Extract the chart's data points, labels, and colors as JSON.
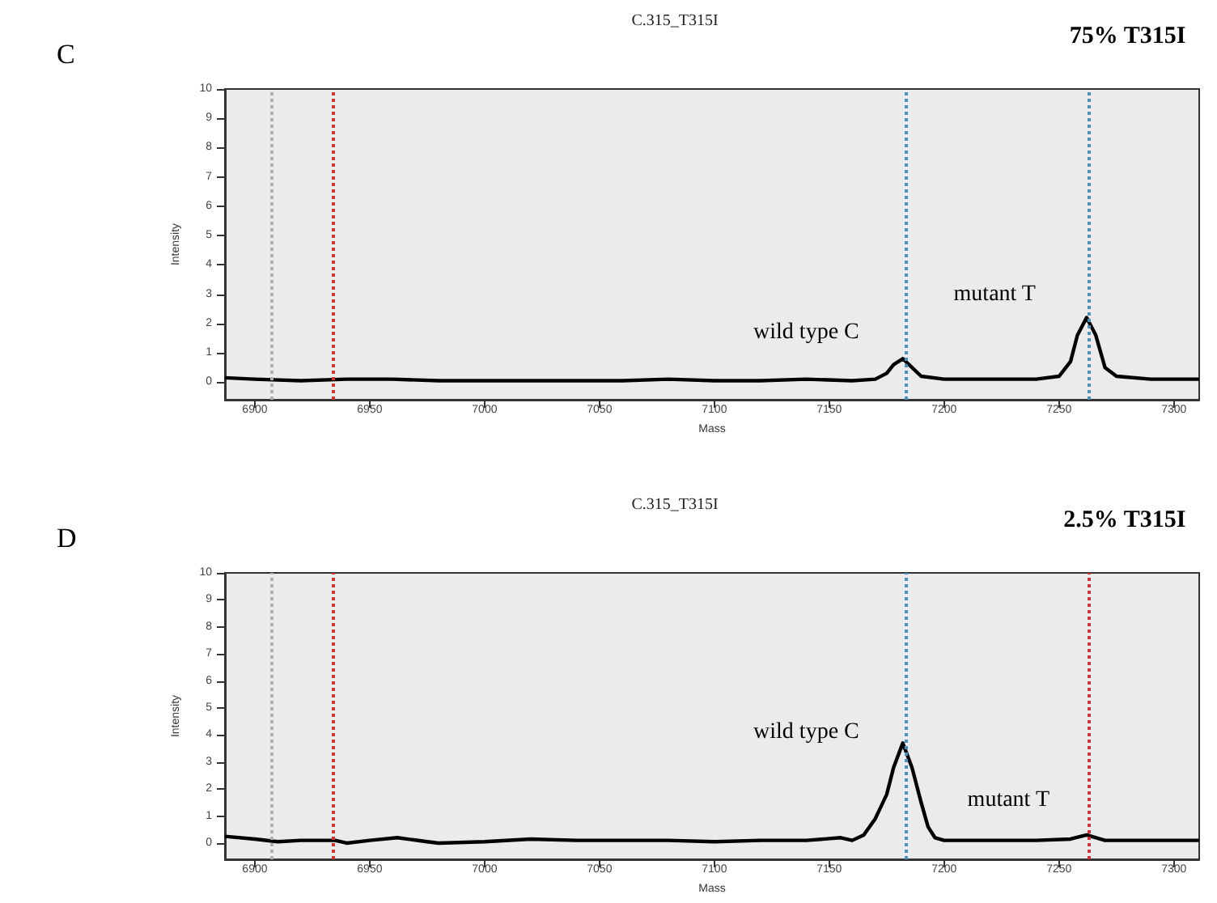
{
  "chart_data": [
    {
      "type": "line",
      "title": "75% T315I",
      "subtitle": "C.315_T315I",
      "xlabel": "Mass",
      "ylabel": "Intensity",
      "annotations": [
        "C",
        "wild type C",
        "mutant T"
      ],
      "series": [
        {
          "color": "#000000",
          "x": [
            6887,
            6900,
            6920,
            6940,
            6960,
            6980,
            7000,
            7020,
            7040,
            7060,
            7080,
            7100,
            7120,
            7140,
            7160,
            7170,
            7175,
            7178,
            7182,
            7186,
            7190,
            7200,
            7220,
            7240,
            7250,
            7255,
            7258,
            7262,
            7266,
            7270,
            7275,
            7290,
            7311
          ],
          "values": [
            0.15,
            0.1,
            0.05,
            0.1,
            0.1,
            0.05,
            0.05,
            0.05,
            0.05,
            0.05,
            0.1,
            0.05,
            0.05,
            0.1,
            0.05,
            0.1,
            0.3,
            0.6,
            0.8,
            0.5,
            0.2,
            0.1,
            0.1,
            0.1,
            0.2,
            0.7,
            1.6,
            2.2,
            1.6,
            0.5,
            0.2,
            0.1,
            0.1
          ]
        }
      ],
      "xlim": [
        6887,
        7311
      ],
      "xticks": [
        6900,
        6950,
        7000,
        7050,
        7100,
        7150,
        7200,
        7250,
        7300
      ],
      "ylim": [
        -0.6,
        10
      ],
      "yticks": [
        0,
        1,
        2,
        3,
        4,
        5,
        6,
        7,
        8,
        9,
        10
      ],
      "ref_lines": [
        {
          "axis": "x",
          "value": 6907,
          "label": null,
          "color": "#b0b0b0",
          "line_style": "dotted"
        },
        {
          "axis": "x",
          "value": 6934,
          "label": null,
          "color": "#cc3333",
          "line_style": "dotted"
        },
        {
          "axis": "x",
          "value": 7183,
          "label": null,
          "color": "#4a8fc0",
          "line_style": "dotted"
        },
        {
          "axis": "x",
          "value": 7263,
          "label": null,
          "color": "#4a8fc0",
          "line_style": "dotted"
        }
      ],
      "grid": false,
      "marker": "none",
      "line_style": "solid"
    },
    {
      "type": "line",
      "title": "2.5% T315I",
      "subtitle": "C.315_T315I",
      "xlabel": "Mass",
      "ylabel": "Intensity",
      "annotations": [
        "D",
        "wild type C",
        "mutant T"
      ],
      "series": [
        {
          "color": "#000000",
          "x": [
            6887,
            6900,
            6910,
            6920,
            6935,
            6940,
            6950,
            6962,
            6975,
            6980,
            7000,
            7020,
            7040,
            7060,
            7080,
            7100,
            7120,
            7140,
            7155,
            7160,
            7165,
            7170,
            7175,
            7178,
            7182,
            7186,
            7190,
            7193,
            7196,
            7200,
            7220,
            7240,
            7255,
            7262,
            7270,
            7290,
            7311
          ],
          "values": [
            0.25,
            0.15,
            0.05,
            0.1,
            0.1,
            0,
            0.1,
            0.2,
            0.05,
            0,
            0.05,
            0.15,
            0.1,
            0.1,
            0.1,
            0.05,
            0.1,
            0.1,
            0.2,
            0.1,
            0.3,
            0.9,
            1.8,
            2.8,
            3.7,
            2.8,
            1.5,
            0.6,
            0.2,
            0.1,
            0.1,
            0.1,
            0.15,
            0.3,
            0.1,
            0.1,
            0.1
          ]
        }
      ],
      "xlim": [
        6887,
        7311
      ],
      "xticks": [
        6900,
        6950,
        7000,
        7050,
        7100,
        7150,
        7200,
        7250,
        7300
      ],
      "ylim": [
        -0.6,
        10
      ],
      "yticks": [
        0,
        1,
        2,
        3,
        4,
        5,
        6,
        7,
        8,
        9,
        10
      ],
      "ref_lines": [
        {
          "axis": "x",
          "value": 6907,
          "label": null,
          "color": "#b0b0b0",
          "line_style": "dotted"
        },
        {
          "axis": "x",
          "value": 6934,
          "label": null,
          "color": "#cc3333",
          "line_style": "dotted"
        },
        {
          "axis": "x",
          "value": 7183,
          "label": null,
          "color": "#4a8fc0",
          "line_style": "dotted"
        },
        {
          "axis": "x",
          "value": 7263,
          "label": null,
          "color": "#cc3333",
          "line_style": "dotted"
        }
      ],
      "grid": false,
      "marker": "none",
      "line_style": "solid"
    }
  ]
}
